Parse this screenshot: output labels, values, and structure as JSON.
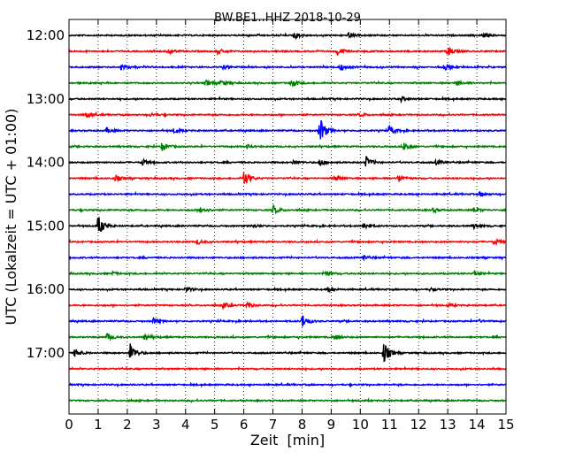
{
  "chart_data": {
    "type": "line",
    "title": "BW.BE1..HHZ 2018-10-29",
    "xlabel": "Zeit  [min]",
    "ylabel": "UTC (Lokalzeit = UTC + 01:00)",
    "xlim": [
      0,
      15
    ],
    "x_ticks": [
      0,
      1,
      2,
      3,
      4,
      5,
      6,
      7,
      8,
      9,
      10,
      11,
      12,
      13,
      14,
      15
    ],
    "x_tick_labels": [
      "0",
      "1",
      "2",
      "3",
      "4",
      "5",
      "6",
      "7",
      "8",
      "9",
      "10",
      "11",
      "12",
      "13",
      "14",
      "15"
    ],
    "y_tick_labels": [
      "12:00",
      "13:00",
      "14:00",
      "15:00",
      "16:00",
      "17:00"
    ],
    "y_tick_rows": [
      0,
      4,
      8,
      12,
      16,
      20
    ],
    "grid": "vertical dotted",
    "row_interval_min": 15,
    "colors": [
      "#000000",
      "#ff0000",
      "#0000ff",
      "#008000"
    ],
    "series": [
      {
        "start": "12:00",
        "events": [
          [
            7.7,
            0.5
          ],
          [
            9.6,
            0.35
          ],
          [
            14.2,
            0.3
          ]
        ]
      },
      {
        "start": "12:15",
        "events": [
          [
            3.4,
            0.3
          ],
          [
            5.1,
            0.3
          ],
          [
            9.2,
            0.5
          ],
          [
            13.0,
            0.6
          ]
        ]
      },
      {
        "start": "12:30",
        "events": [
          [
            1.8,
            0.4
          ],
          [
            5.3,
            0.25
          ],
          [
            9.3,
            0.45
          ],
          [
            12.9,
            0.35
          ]
        ]
      },
      {
        "start": "12:45",
        "events": [
          [
            4.7,
            0.35
          ],
          [
            5.2,
            0.35
          ],
          [
            7.6,
            0.6
          ],
          [
            13.3,
            0.3
          ]
        ]
      },
      {
        "start": "13:00",
        "events": [
          [
            11.4,
            0.3
          ]
        ]
      },
      {
        "start": "13:15",
        "events": [
          [
            0.6,
            0.35
          ],
          [
            2.8,
            0.2
          ],
          [
            10.0,
            0.2
          ]
        ]
      },
      {
        "start": "13:30",
        "events": [
          [
            1.3,
            0.3
          ],
          [
            3.6,
            0.3
          ],
          [
            8.6,
            1.8
          ],
          [
            11.0,
            0.6
          ]
        ]
      },
      {
        "start": "13:45",
        "events": [
          [
            3.2,
            0.55
          ],
          [
            6.1,
            0.25
          ],
          [
            11.5,
            0.6
          ]
        ]
      },
      {
        "start": "14:00",
        "events": [
          [
            2.5,
            0.45
          ],
          [
            7.7,
            0.3
          ],
          [
            8.6,
            0.5
          ],
          [
            10.2,
            0.7
          ],
          [
            12.6,
            0.3
          ]
        ]
      },
      {
        "start": "14:15",
        "events": [
          [
            1.6,
            0.4
          ],
          [
            6.0,
            1.0
          ],
          [
            9.1,
            0.4
          ],
          [
            11.3,
            0.5
          ]
        ]
      },
      {
        "start": "14:30",
        "events": [
          [
            14.1,
            0.3
          ]
        ]
      },
      {
        "start": "14:45",
        "events": [
          [
            4.5,
            0.5
          ],
          [
            7.0,
            0.55
          ],
          [
            12.5,
            0.25
          ],
          [
            13.9,
            0.3
          ]
        ]
      },
      {
        "start": "15:00",
        "events": [
          [
            1.0,
            1.3
          ],
          [
            6.3,
            0.3
          ],
          [
            10.1,
            0.45
          ],
          [
            13.9,
            0.3
          ]
        ]
      },
      {
        "start": "15:15",
        "events": [
          [
            4.4,
            0.3
          ],
          [
            14.6,
            0.4
          ]
        ]
      },
      {
        "start": "15:30",
        "events": [
          [
            10.1,
            0.25
          ]
        ]
      },
      {
        "start": "15:45",
        "events": [
          [
            1.5,
            0.2
          ],
          [
            8.8,
            0.35
          ],
          [
            13.9,
            0.25
          ]
        ]
      },
      {
        "start": "16:00",
        "events": [
          [
            4.0,
            0.3
          ],
          [
            8.9,
            0.3
          ],
          [
            12.4,
            0.2
          ]
        ]
      },
      {
        "start": "16:15",
        "events": [
          [
            5.3,
            0.35
          ],
          [
            6.1,
            0.35
          ],
          [
            13.0,
            0.2
          ]
        ]
      },
      {
        "start": "16:30",
        "events": [
          [
            2.9,
            0.35
          ],
          [
            8.0,
            0.9
          ],
          [
            14.0,
            0.25
          ]
        ]
      },
      {
        "start": "16:45",
        "events": [
          [
            1.3,
            0.5
          ],
          [
            2.6,
            0.4
          ],
          [
            9.1,
            0.3
          ]
        ]
      },
      {
        "start": "17:00",
        "events": [
          [
            0.2,
            0.5
          ],
          [
            2.1,
            1.3
          ],
          [
            10.8,
            1.4
          ]
        ]
      },
      {
        "start": "17:15",
        "events": []
      },
      {
        "start": "17:30",
        "events": []
      },
      {
        "start": "17:45",
        "events": []
      }
    ]
  }
}
